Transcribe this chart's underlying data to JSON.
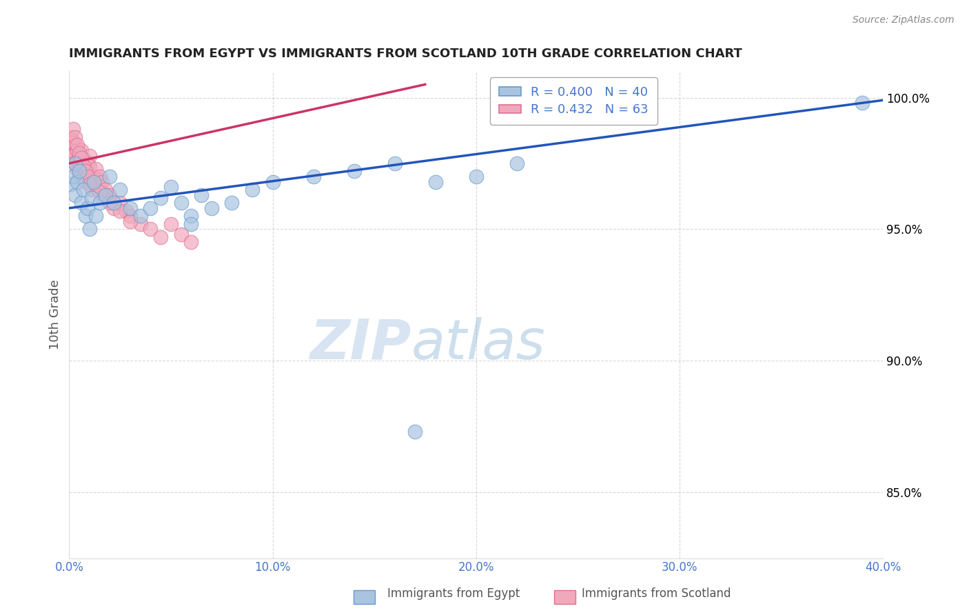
{
  "title": "IMMIGRANTS FROM EGYPT VS IMMIGRANTS FROM SCOTLAND 10TH GRADE CORRELATION CHART",
  "source": "Source: ZipAtlas.com",
  "ylabel": "10th Grade",
  "xlim": [
    0.0,
    0.4
  ],
  "ylim": [
    0.825,
    1.01
  ],
  "legend_entries": [
    {
      "label": "Immigrants from Egypt",
      "color": "#aac4e0",
      "edge": "#6699cc",
      "R": "0.400",
      "N": "40"
    },
    {
      "label": "Immigrants from Scotland",
      "color": "#f0a8bc",
      "edge": "#e07090",
      "R": "0.432",
      "N": "63"
    }
  ],
  "egypt_scatter_x": [
    0.001,
    0.002,
    0.003,
    0.003,
    0.004,
    0.005,
    0.006,
    0.007,
    0.008,
    0.009,
    0.01,
    0.011,
    0.012,
    0.013,
    0.015,
    0.018,
    0.02,
    0.022,
    0.025,
    0.03,
    0.035,
    0.04,
    0.045,
    0.05,
    0.055,
    0.06,
    0.065,
    0.07,
    0.08,
    0.09,
    0.1,
    0.12,
    0.14,
    0.16,
    0.18,
    0.2,
    0.22,
    0.39,
    0.17,
    0.06
  ],
  "egypt_scatter_y": [
    0.967,
    0.97,
    0.963,
    0.975,
    0.968,
    0.972,
    0.96,
    0.965,
    0.955,
    0.958,
    0.95,
    0.962,
    0.968,
    0.955,
    0.96,
    0.963,
    0.97,
    0.96,
    0.965,
    0.958,
    0.955,
    0.958,
    0.962,
    0.966,
    0.96,
    0.955,
    0.963,
    0.958,
    0.96,
    0.965,
    0.968,
    0.97,
    0.972,
    0.975,
    0.968,
    0.97,
    0.975,
    0.998,
    0.873,
    0.952
  ],
  "scotland_scatter_x": [
    0.001,
    0.001,
    0.002,
    0.002,
    0.003,
    0.003,
    0.003,
    0.004,
    0.004,
    0.004,
    0.005,
    0.005,
    0.005,
    0.006,
    0.006,
    0.006,
    0.007,
    0.007,
    0.008,
    0.008,
    0.008,
    0.009,
    0.009,
    0.01,
    0.01,
    0.01,
    0.011,
    0.011,
    0.012,
    0.012,
    0.013,
    0.013,
    0.014,
    0.015,
    0.015,
    0.016,
    0.017,
    0.018,
    0.019,
    0.02,
    0.022,
    0.025,
    0.028,
    0.03,
    0.035,
    0.04,
    0.045,
    0.05,
    0.055,
    0.06,
    0.002,
    0.003,
    0.004,
    0.005,
    0.006,
    0.007,
    0.008,
    0.009,
    0.01,
    0.015,
    0.02,
    0.025,
    0.03
  ],
  "scotland_scatter_y": [
    0.98,
    0.985,
    0.978,
    0.983,
    0.982,
    0.979,
    0.975,
    0.98,
    0.976,
    0.973,
    0.978,
    0.975,
    0.971,
    0.98,
    0.977,
    0.974,
    0.97,
    0.973,
    0.976,
    0.972,
    0.968,
    0.975,
    0.971,
    0.978,
    0.974,
    0.97,
    0.968,
    0.965,
    0.97,
    0.967,
    0.973,
    0.969,
    0.965,
    0.97,
    0.966,
    0.968,
    0.963,
    0.965,
    0.961,
    0.963,
    0.958,
    0.96,
    0.957,
    0.955,
    0.952,
    0.95,
    0.947,
    0.952,
    0.948,
    0.945,
    0.988,
    0.985,
    0.982,
    0.979,
    0.977,
    0.974,
    0.972,
    0.97,
    0.967,
    0.964,
    0.96,
    0.957,
    0.953
  ],
  "egypt_line_x": [
    0.0,
    0.4
  ],
  "egypt_line_y": [
    0.958,
    0.999
  ],
  "scotland_line_x": [
    0.0,
    0.175
  ],
  "scotland_line_y": [
    0.975,
    1.005
  ],
  "watermark_zip": "ZIP",
  "watermark_atlas": "atlas",
  "background_color": "#ffffff",
  "grid_color": "#cccccc",
  "egypt_dot_color": "#aac4e0",
  "egypt_dot_edge": "#6699cc",
  "scotland_dot_color": "#f0a8bc",
  "scotland_dot_edge": "#e07090",
  "egypt_line_color": "#2255bb",
  "scotland_line_color": "#cc3366",
  "tick_color": "#4477cc",
  "ylabel_color": "#555555",
  "title_color": "#222222",
  "source_color": "#888888"
}
